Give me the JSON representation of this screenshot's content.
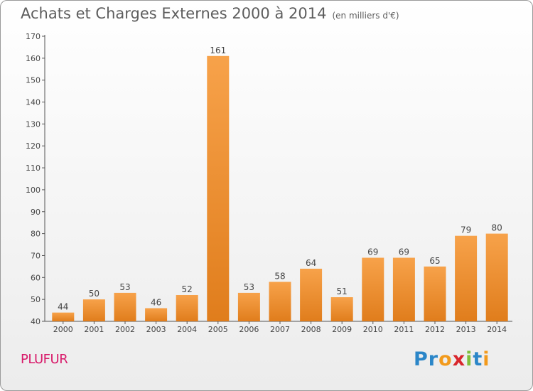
{
  "header": {
    "title": "Achats et Charges Externes 2000 à 2014",
    "subtitle": "(en milliers d'€)"
  },
  "footer": {
    "commune": "PLUFUR",
    "logo_text": "Proxiti"
  },
  "colors": {
    "bar_light": "#f7a24a",
    "bar_dark": "#e07d1c",
    "commune": "#d81a6a"
  },
  "chart_data": {
    "type": "bar",
    "title": "Achats et Charges Externes 2000 à 2014",
    "subtitle": "(en milliers d'€)",
    "categories": [
      "2000",
      "2001",
      "2002",
      "2003",
      "2004",
      "2005",
      "2006",
      "2007",
      "2008",
      "2009",
      "2010",
      "2011",
      "2012",
      "2013",
      "2014"
    ],
    "values": [
      44,
      50,
      53,
      46,
      52,
      161,
      53,
      58,
      64,
      51,
      69,
      69,
      65,
      79,
      80
    ],
    "data_labels": [
      "44",
      "50",
      "53",
      "46",
      "52",
      "161",
      "53",
      "58",
      "64",
      "51",
      "69",
      "69",
      "65",
      "79",
      "80"
    ],
    "ylim": [
      40,
      170
    ],
    "yticks": [
      40,
      50,
      60,
      70,
      80,
      90,
      100,
      110,
      120,
      130,
      140,
      150,
      160,
      170
    ],
    "grid": false,
    "legend": "none"
  }
}
